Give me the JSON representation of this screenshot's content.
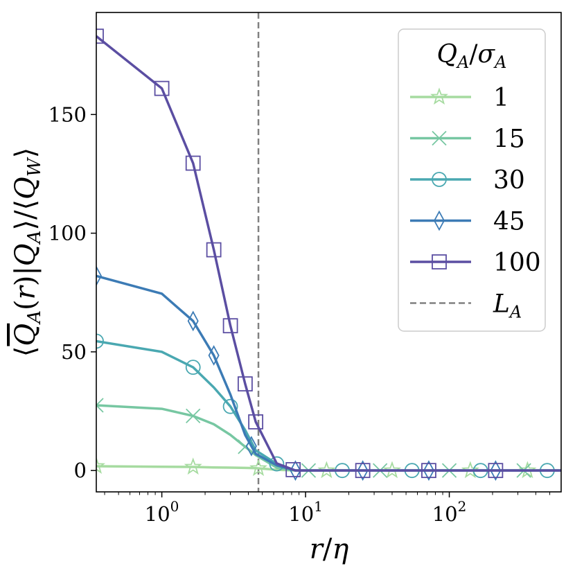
{
  "chart_data": {
    "type": "line",
    "xscale": "log",
    "xlabel": "r/η",
    "ylabel": "⟨Q̄_A(r)|Q_A⟩/⟨Q_W⟩",
    "xlim": [
      0.35,
      600
    ],
    "ylim": [
      -9,
      193
    ],
    "yticks": [
      0,
      50,
      100,
      150
    ],
    "xticks": [
      {
        "value": 1,
        "base": "10",
        "exp": "0"
      },
      {
        "value": 10,
        "base": "10",
        "exp": "1"
      },
      {
        "value": 100,
        "base": "10",
        "exp": "2"
      }
    ],
    "vline": {
      "x": 4.7,
      "label": "L_A",
      "color": "#808080",
      "style": "dashed"
    },
    "legend": {
      "title": "Q_A/σ_A",
      "position": "top-right",
      "ref_label": "L_A"
    },
    "x": [
      0.35,
      1.0,
      1.65,
      2.3,
      3.0,
      3.8,
      4.5,
      6.3,
      8.5,
      10,
      14,
      18,
      25,
      33,
      40,
      55,
      72,
      100,
      140,
      210,
      280,
      350,
      480,
      600
    ],
    "series": [
      {
        "name": "1",
        "color": "#a6dba0",
        "marker": "star",
        "values": [
          1.8,
          1.6,
          1.5,
          1.3,
          1.2,
          1.1,
          1.0,
          0.3,
          0,
          0,
          0,
          0,
          0,
          0,
          0,
          0,
          0,
          0,
          0,
          0,
          0,
          0,
          0,
          0
        ],
        "marker_x": [
          0.35,
          1.65,
          4.7,
          14,
          40,
          140,
          350
        ]
      },
      {
        "name": "15",
        "color": "#77c7a2",
        "marker": "x",
        "values": [
          27.5,
          26,
          23,
          19.5,
          15,
          10,
          6.5,
          1.2,
          0,
          0,
          0,
          0,
          0,
          0,
          0,
          0,
          0,
          0,
          0,
          0,
          0,
          0,
          0,
          0
        ],
        "marker_x": [
          0.35,
          1.65,
          3.8,
          10.5,
          33,
          100,
          330
        ]
      },
      {
        "name": "30",
        "color": "#4aa8b1",
        "marker": "circle",
        "values": [
          54.5,
          50,
          43.5,
          35,
          27,
          17,
          8.5,
          2.8,
          0,
          0,
          0,
          0,
          0,
          0,
          0,
          0,
          0,
          0,
          0,
          0,
          0,
          0,
          0,
          0
        ],
        "marker_x": [
          0.35,
          1.65,
          3.0,
          6.3,
          18,
          55,
          165,
          480
        ]
      },
      {
        "name": "45",
        "color": "#3c7bb5",
        "marker": "diamond",
        "values": [
          82,
          74.5,
          63,
          48.5,
          32,
          15,
          7,
          2.2,
          0,
          0,
          0,
          0,
          0,
          0,
          0,
          0,
          0,
          0,
          0,
          0,
          0,
          0,
          0,
          0
        ],
        "marker_x": [
          0.35,
          1.65,
          2.3,
          4.2,
          8.5,
          25,
          72,
          210
        ]
      },
      {
        "name": "100",
        "color": "#5b4ea2",
        "marker": "square",
        "values": [
          183,
          161,
          129.5,
          93,
          61,
          36.5,
          20.5,
          3.0,
          0,
          0,
          0,
          0,
          0,
          0,
          0,
          0,
          0,
          0,
          0,
          0,
          0,
          0,
          0,
          0
        ],
        "marker_x": [
          0.35,
          1.0,
          1.65,
          2.3,
          3.0,
          3.8,
          4.5,
          8.2,
          25,
          72,
          210
        ]
      }
    ]
  }
}
